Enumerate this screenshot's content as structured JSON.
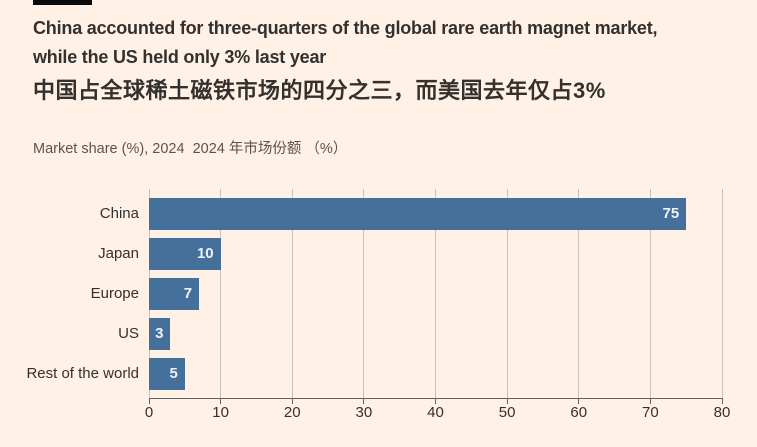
{
  "page": {
    "background": "#fff1e5",
    "accent_rule_color": "#0a0a0a",
    "title_color": "#33302e",
    "subtitle_color": "#5b544f"
  },
  "header": {
    "title_en_lines": [
      "China accounted for three-quarters of the global rare earth magnet market,",
      "while the US held only 3% last year"
    ],
    "title_zh": "中国占全球稀土磁铁市场的四分之三，而美国去年仅占3%",
    "subtitle": "Market share (%), 2024  2024 年市场份额 （%）"
  },
  "chart_data": {
    "type": "bar",
    "orientation": "horizontal",
    "title": "China accounted for three-quarters of the global rare earth magnet market, while the US held only 3% last year",
    "subtitle": "Market share (%), 2024",
    "categories": [
      "China",
      "Japan",
      "Europe",
      "US",
      "Rest of the world"
    ],
    "values": [
      75,
      10,
      7,
      3,
      5
    ],
    "value_labels": [
      "75",
      "10",
      "7",
      "3",
      "5"
    ],
    "xlim": [
      0,
      80
    ],
    "xticks": [
      0,
      10,
      20,
      30,
      40,
      50,
      60,
      70,
      80
    ],
    "xlabel": "",
    "ylabel": "",
    "grid": true,
    "legend": false,
    "bar_color": "#45709b",
    "value_label_color": "#eef3f7",
    "gridline_color": "#cfc1b6",
    "axis_color": "#66605c",
    "tick_label_color": "#33302e",
    "category_label_color": "#33302e"
  }
}
